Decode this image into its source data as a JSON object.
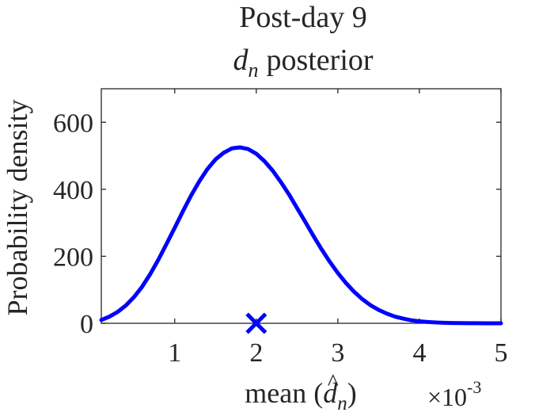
{
  "chart_data": {
    "type": "line",
    "title_lines": [
      "Post-day 9",
      "posterior"
    ],
    "title_symbol": {
      "base": "d",
      "subscript": "n"
    },
    "ylabel": "Probability density",
    "xlabel": {
      "prefix": "mean (",
      "symbol_base": "d",
      "symbol_hat": "^",
      "symbol_subscript": "n",
      "suffix": ")"
    },
    "x_multiplier": {
      "base": "×10",
      "exponent": "-3"
    },
    "xlim": [
      0.0001,
      0.005
    ],
    "ylim": [
      0,
      700
    ],
    "xticks": [
      0.001,
      0.002,
      0.003,
      0.004,
      0.005
    ],
    "xtick_labels": [
      "1",
      "2",
      "3",
      "4",
      "5"
    ],
    "yticks": [
      0,
      200,
      400,
      600
    ],
    "ytick_labels": [
      "0",
      "200",
      "400",
      "600"
    ],
    "grid": false,
    "series": [
      {
        "color": "#0000ff",
        "x": [
          0.0001,
          0.0002,
          0.0003,
          0.0004,
          0.0005,
          0.0006,
          0.0007,
          0.0008,
          0.0009,
          0.001,
          0.0011,
          0.0012,
          0.0013,
          0.0014,
          0.0015,
          0.0016,
          0.0017,
          0.0018,
          0.0019,
          0.002,
          0.0021,
          0.0022,
          0.0023,
          0.0024,
          0.0025,
          0.0026,
          0.0027,
          0.0028,
          0.0029,
          0.003,
          0.0031,
          0.0032,
          0.0033,
          0.0034,
          0.0035,
          0.0036,
          0.0037,
          0.0038,
          0.0039,
          0.004,
          0.0041,
          0.0042,
          0.0043,
          0.0044,
          0.0045,
          0.0046,
          0.0047,
          0.0048,
          0.0049,
          0.005
        ],
        "y": [
          10,
          20,
          34,
          53,
          78,
          109,
          147,
          190,
          237,
          285,
          334,
          381,
          423,
          460,
          489,
          509,
          522,
          525,
          520,
          506,
          484,
          456,
          422,
          385,
          344,
          303,
          261,
          221,
          184,
          150,
          120,
          94,
          72,
          54,
          40,
          29,
          20,
          14,
          9,
          6,
          4,
          2.5,
          1.5,
          0.9,
          0.5,
          0.3,
          0.2,
          0.1,
          0.05,
          0
        ]
      }
    ],
    "marker": {
      "x": 0.002,
      "y": 0,
      "symbol": "x",
      "color": "#0000ff"
    }
  }
}
